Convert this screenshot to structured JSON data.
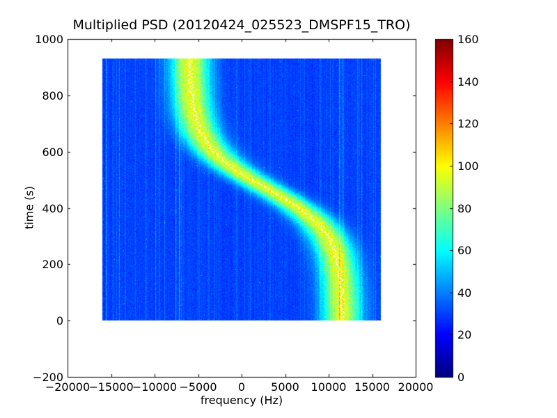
{
  "chart_data": {
    "type": "heatmap",
    "title": "Multiplied PSD (20120424_025523_DMSPF15_TRO)",
    "xlabel": "frequency (Hz)",
    "ylabel": "time (s)",
    "xlim": [
      -20000,
      20000
    ],
    "ylim": [
      -200,
      1000
    ],
    "grid": false,
    "legend": "none",
    "colormap": "jet",
    "x_ticks": {
      "values": [
        -20000,
        -15000,
        -10000,
        -5000,
        0,
        5000,
        10000,
        15000,
        20000
      ],
      "labels": [
        "−20000",
        "−15000",
        "−10000",
        "−5000",
        "0",
        "5000",
        "10000",
        "15000",
        "20000"
      ]
    },
    "y_ticks": {
      "values": [
        -200,
        0,
        200,
        400,
        600,
        800,
        1000
      ],
      "labels": [
        "−200",
        "0",
        "200",
        "400",
        "600",
        "800",
        "1000"
      ]
    },
    "colorbar": {
      "min": 0,
      "max": 160,
      "tick_values": [
        0,
        20,
        40,
        60,
        80,
        100,
        120,
        140,
        160
      ],
      "tick_labels": [
        "0",
        "20",
        "40",
        "60",
        "80",
        "100",
        "120",
        "140",
        "160"
      ],
      "position": "right"
    },
    "data_extent": {
      "f_min": -16000,
      "f_max": 16000,
      "t_min": 0,
      "t_max": 930
    },
    "background_value": 30,
    "noise_amp": 8,
    "doppler_band": {
      "description": "S-shaped Doppler track of satellite pass: broad green/yellow-green PSD ridge (peak ~96) on blue background (~30), with a thin white carrier trace along the ridge center",
      "amplitude": 66,
      "sigma_hz": 1550,
      "center_curve": {
        "model": "f(t) = f_mid − f_amp · tanh((t − t_mid)/tau)",
        "f_mid_hz": 2800,
        "f_amp_hz": 8800,
        "t_mid_s": 470,
        "tau_s": 155,
        "f_at_t0_hz": 11560,
        "f_at_t930_hz": -5950
      },
      "white_trace": true
    },
    "rfi_streaks": [
      {
        "f_hz": -15600,
        "amp": 18
      },
      {
        "f_hz": -14800,
        "amp": 10
      },
      {
        "f_hz": -14100,
        "amp": 16
      },
      {
        "f_hz": -13400,
        "amp": 12
      },
      {
        "f_hz": -12200,
        "amp": 8
      },
      {
        "f_hz": -11000,
        "amp": 9
      },
      {
        "f_hz": -9900,
        "amp": 14
      },
      {
        "f_hz": -9500,
        "amp": 10
      },
      {
        "f_hz": -7600,
        "amp": 22
      },
      {
        "f_hz": -7200,
        "amp": 18
      },
      {
        "f_hz": -6900,
        "amp": 12
      },
      {
        "f_hz": -3800,
        "amp": 8
      },
      {
        "f_hz": -600,
        "amp": 7
      },
      {
        "f_hz": 2500,
        "amp": 6
      },
      {
        "f_hz": 9000,
        "amp": 8
      },
      {
        "f_hz": 11300,
        "amp": 24
      },
      {
        "f_hz": 11700,
        "amp": 20
      },
      {
        "f_hz": 13800,
        "amp": 14
      },
      {
        "f_hz": 15200,
        "amp": 8
      }
    ],
    "colors": {
      "figure_background": "#ffffff",
      "axes_frame": "#000000",
      "heatmap_background_blue": "#0040ff",
      "band_core_yellow_green": "#e5ff19",
      "trace": "#ffffff"
    }
  }
}
